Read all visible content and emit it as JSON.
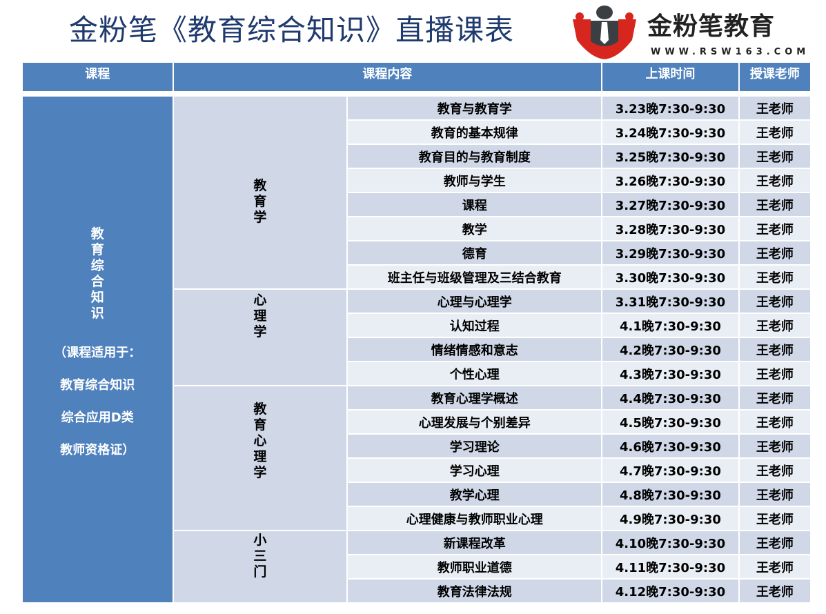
{
  "title": "金粉笔《教育综合知识》直播课表",
  "logo": {
    "text": "金粉笔教育",
    "url": "WWW.RSW163.COM",
    "colors": {
      "red": "#d7261e",
      "dark": "#3a3f44"
    }
  },
  "colors": {
    "header": "#4f81bd",
    "row_odd": "#d0d8e8",
    "row_even": "#e9edf4",
    "title": "#1f3a6e"
  },
  "headers": [
    "课程",
    "课程内容",
    "上课时间",
    "授课老师"
  ],
  "course": {
    "name": "教育综合知识",
    "note_lines": [
      "（课程适用于：",
      "教育综合知识",
      "综合应用D类",
      "教师资格证）"
    ]
  },
  "sections": [
    {
      "name": "教育学",
      "rows": [
        {
          "topic": "教育与教育学",
          "time": "3.23晚7:30-9:30",
          "teacher": "王老师"
        },
        {
          "topic": "教育的基本规律",
          "time": "3.24晚7:30-9:30",
          "teacher": "王老师"
        },
        {
          "topic": "教育目的与教育制度",
          "time": "3.25晚7:30-9:30",
          "teacher": "王老师"
        },
        {
          "topic": "教师与学生",
          "time": "3.26晚7:30-9:30",
          "teacher": "王老师"
        },
        {
          "topic": "课程",
          "time": "3.27晚7:30-9:30",
          "teacher": "王老师"
        },
        {
          "topic": "教学",
          "time": "3.28晚7:30-9:30",
          "teacher": "王老师"
        },
        {
          "topic": "德育",
          "time": "3.29晚7:30-9:30",
          "teacher": "王老师"
        },
        {
          "topic": "班主任与班级管理及三结合教育",
          "time": "3.30晚7:30-9:30",
          "teacher": "王老师"
        }
      ]
    },
    {
      "name": "心理学",
      "rows": [
        {
          "topic": "心理与心理学",
          "time": "3.31晚7:30-9:30",
          "teacher": "王老师"
        },
        {
          "topic": "认知过程",
          "time": "4.1晚7:30-9:30",
          "teacher": "王老师"
        },
        {
          "topic": "情绪情感和意志",
          "time": "4.2晚7:30-9:30",
          "teacher": "王老师"
        },
        {
          "topic": "个性心理",
          "time": "4.3晚7:30-9:30",
          "teacher": "王老师"
        }
      ]
    },
    {
      "name": "教育心理学",
      "rows": [
        {
          "topic": "教育心理学概述",
          "time": "4.4晚7:30-9:30",
          "teacher": "王老师"
        },
        {
          "topic": "心理发展与个别差异",
          "time": "4.5晚7:30-9:30",
          "teacher": "王老师"
        },
        {
          "topic": "学习理论",
          "time": "4.6晚7:30-9:30",
          "teacher": "王老师"
        },
        {
          "topic": "学习心理",
          "time": "4.7晚7:30-9:30",
          "teacher": "王老师"
        },
        {
          "topic": "教学心理",
          "time": "4.8晚7:30-9:30",
          "teacher": "王老师"
        },
        {
          "topic": "心理健康与教师职业心理",
          "time": "4.9晚7:30-9:30",
          "teacher": "王老师"
        }
      ]
    },
    {
      "name": "小三门",
      "rows": [
        {
          "topic": "新课程改革",
          "time": "4.10晚7:30-9:30",
          "teacher": "王老师"
        },
        {
          "topic": "教师职业道德",
          "time": "4.11晚7:30-9:30",
          "teacher": "王老师"
        },
        {
          "topic": "教育法律法规",
          "time": "4.12晚7:30-9:30",
          "teacher": "王老师"
        }
      ]
    }
  ]
}
